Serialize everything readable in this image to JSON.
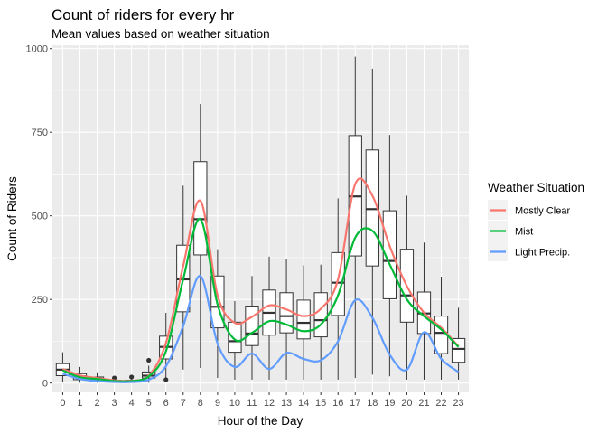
{
  "chart_data": {
    "type": "boxplot+line",
    "title": "Count of riders for every hr",
    "subtitle": "Mean values based on weather situation",
    "xlabel": "Hour of the Day",
    "ylabel": "Count of Riders",
    "categories": [
      "0",
      "1",
      "2",
      "3",
      "4",
      "5",
      "6",
      "7",
      "8",
      "9",
      "10",
      "11",
      "12",
      "13",
      "14",
      "15",
      "16",
      "17",
      "18",
      "19",
      "20",
      "21",
      "22",
      "23"
    ],
    "ylim": [
      -28,
      1010
    ],
    "yticks": [
      0,
      250,
      500,
      750,
      1000
    ],
    "yticklabels": [
      "0",
      "250",
      "500",
      "750",
      "1000"
    ],
    "grid": true,
    "boxes": [
      {
        "min": 2,
        "q1": 22,
        "median": 40,
        "q3": 58,
        "max": 92,
        "outliers": []
      },
      {
        "min": 1,
        "q1": 10,
        "median": 20,
        "q3": 28,
        "max": 48,
        "outliers": []
      },
      {
        "min": 1,
        "q1": 5,
        "median": 11,
        "q3": 18,
        "max": 32,
        "outliers": []
      },
      {
        "min": 1,
        "q1": 3,
        "median": 5,
        "q3": 8,
        "max": 12,
        "outliers": [
          15
        ]
      },
      {
        "min": 1,
        "q1": 3,
        "median": 6,
        "q3": 8,
        "max": 12,
        "outliers": [
          18
        ]
      },
      {
        "min": 1,
        "q1": 15,
        "median": 22,
        "q3": 33,
        "max": 52,
        "outliers": [
          68
        ]
      },
      {
        "min": 10,
        "q1": 72,
        "median": 108,
        "q3": 140,
        "max": 210,
        "outliers": [
          10
        ]
      },
      {
        "min": 40,
        "q1": 213,
        "median": 310,
        "q3": 412,
        "max": 590,
        "outliers": []
      },
      {
        "min": 45,
        "q1": 383,
        "median": 490,
        "q3": 662,
        "max": 834,
        "outliers": []
      },
      {
        "min": 15,
        "q1": 165,
        "median": 228,
        "q3": 320,
        "max": 400,
        "outliers": []
      },
      {
        "min": 10,
        "q1": 92,
        "median": 125,
        "q3": 182,
        "max": 245,
        "outliers": []
      },
      {
        "min": 10,
        "q1": 112,
        "median": 148,
        "q3": 230,
        "max": 320,
        "outliers": []
      },
      {
        "min": 10,
        "q1": 143,
        "median": 210,
        "q3": 278,
        "max": 378,
        "outliers": []
      },
      {
        "min": 10,
        "q1": 150,
        "median": 200,
        "q3": 270,
        "max": 370,
        "outliers": []
      },
      {
        "min": 10,
        "q1": 132,
        "median": 180,
        "q3": 248,
        "max": 352,
        "outliers": []
      },
      {
        "min": 10,
        "q1": 138,
        "median": 188,
        "q3": 270,
        "max": 354,
        "outliers": []
      },
      {
        "min": 10,
        "q1": 202,
        "median": 300,
        "q3": 390,
        "max": 552,
        "outliers": []
      },
      {
        "min": 15,
        "q1": 380,
        "median": 558,
        "q3": 740,
        "max": 976,
        "outliers": []
      },
      {
        "min": 25,
        "q1": 350,
        "median": 520,
        "q3": 697,
        "max": 940,
        "outliers": []
      },
      {
        "min": 20,
        "q1": 252,
        "median": 365,
        "q3": 515,
        "max": 742,
        "outliers": []
      },
      {
        "min": 10,
        "q1": 182,
        "median": 262,
        "q3": 400,
        "max": 560,
        "outliers": []
      },
      {
        "min": 10,
        "q1": 148,
        "median": 208,
        "q3": 272,
        "max": 420,
        "outliers": []
      },
      {
        "min": 10,
        "q1": 88,
        "median": 150,
        "q3": 200,
        "max": 318,
        "outliers": []
      },
      {
        "min": 10,
        "q1": 62,
        "median": 102,
        "q3": 133,
        "max": 225,
        "outliers": []
      }
    ],
    "series": [
      {
        "name": "Mostly Clear",
        "color": "#f8766d",
        "values": [
          42,
          23,
          15,
          8,
          7,
          22,
          120,
          350,
          545,
          262,
          180,
          198,
          232,
          220,
          200,
          222,
          310,
          595,
          560,
          410,
          290,
          210,
          165,
          110
        ]
      },
      {
        "name": "Mist",
        "color": "#00ba38",
        "values": [
          38,
          17,
          12,
          6,
          6,
          20,
          95,
          310,
          490,
          235,
          130,
          150,
          185,
          175,
          155,
          175,
          262,
          435,
          455,
          355,
          250,
          200,
          160,
          108
        ]
      },
      {
        "name": "Light Precip.",
        "color": "#619cff",
        "values": [
          28,
          12,
          6,
          3,
          3,
          10,
          50,
          170,
          320,
          118,
          48,
          88,
          42,
          90,
          72,
          68,
          125,
          248,
          195,
          85,
          40,
          152,
          72,
          33
        ]
      }
    ],
    "legend": {
      "title": "Weather Situation",
      "position": "right"
    }
  }
}
